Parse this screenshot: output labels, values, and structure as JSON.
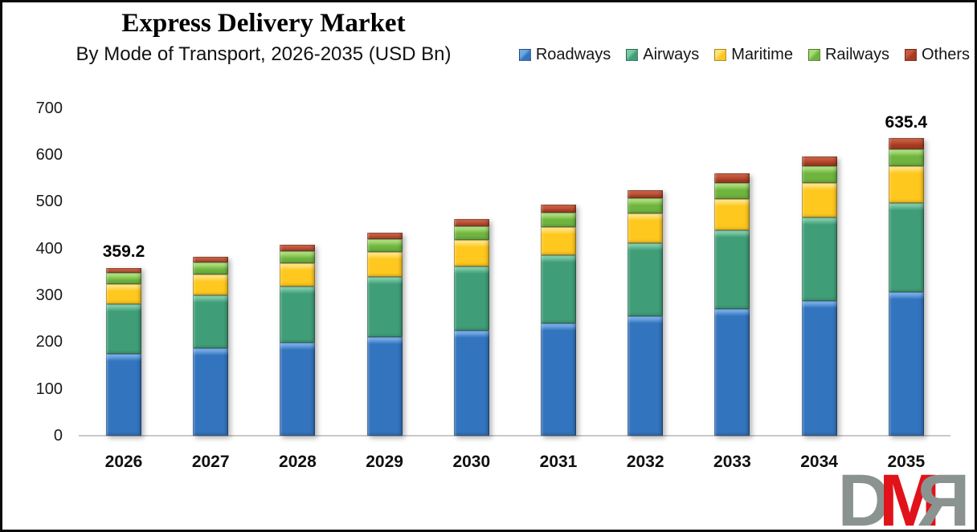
{
  "header": {
    "title": "Express Delivery Market",
    "subtitle": "By Mode of Transport, 2026-2035 (USD Bn)"
  },
  "chart_data": {
    "type": "bar",
    "stacked": true,
    "title": "Express Delivery Market",
    "subtitle": "By Mode of Transport, 2026-2035 (USD Bn)",
    "unit": "USD Bn",
    "categories": [
      "2026",
      "2027",
      "2028",
      "2029",
      "2030",
      "2031",
      "2032",
      "2033",
      "2034",
      "2035"
    ],
    "series": [
      {
        "name": "Roadways",
        "color": "#3374BE",
        "light": "#6FA9E4",
        "values": [
          175.4,
          186.7,
          198.7,
          211.4,
          225.0,
          239.5,
          254.8,
          271.2,
          288.6,
          307.0
        ]
      },
      {
        "name": "Airways",
        "color": "#3F9E78",
        "light": "#7BC8A6",
        "values": [
          105.8,
          112.9,
          120.5,
          128.7,
          137.3,
          146.6,
          156.5,
          167.0,
          178.3,
          190.3
        ]
      },
      {
        "name": "Maritime",
        "color": "#FFC81E",
        "light": "#FFE27A",
        "values": [
          42.9,
          45.8,
          49.0,
          52.3,
          55.9,
          59.7,
          63.8,
          68.2,
          72.9,
          77.9
        ]
      },
      {
        "name": "Railways",
        "color": "#6EB43F",
        "light": "#A8DC76",
        "values": [
          23.4,
          24.7,
          26.0,
          27.4,
          28.9,
          30.4,
          32.0,
          33.8,
          35.6,
          37.5
        ]
      },
      {
        "name": "Others",
        "color": "#A93A22",
        "light": "#C45B3E",
        "values": [
          11.7,
          12.6,
          13.6,
          14.6,
          15.7,
          16.9,
          18.2,
          19.6,
          21.1,
          22.7
        ]
      }
    ],
    "totals": [
      359.2,
      382.7,
      407.8,
      434.4,
      462.8,
      493.1,
      525.3,
      559.8,
      596.5,
      635.4
    ],
    "annotations": {
      "2026": "359.2",
      "2035": "635.4"
    },
    "yticks": [
      0,
      100,
      200,
      300,
      400,
      500,
      600,
      700
    ],
    "ylim": [
      0,
      700
    ],
    "grid": false,
    "legend_position": "top-right"
  },
  "logo": {
    "letters": [
      "D",
      "M",
      "R"
    ],
    "gray": "#8B9390",
    "red": "#E11219"
  }
}
